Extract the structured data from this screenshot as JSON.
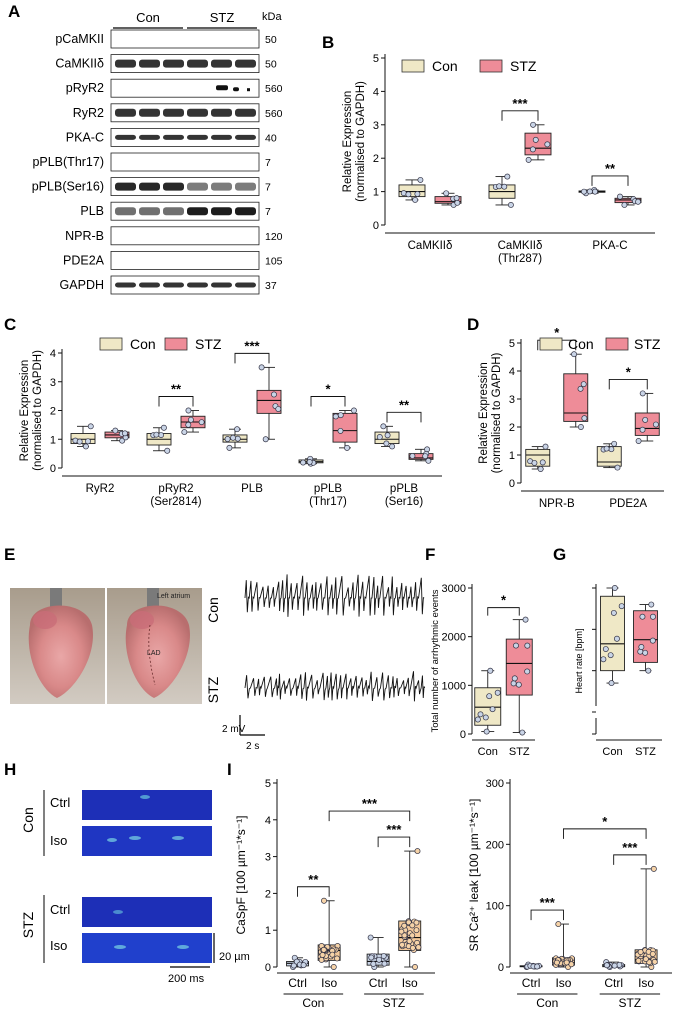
{
  "panel_letters": [
    "A",
    "B",
    "C",
    "D",
    "E",
    "F",
    "G",
    "H",
    "I"
  ],
  "panelA": {
    "groups": [
      "Con",
      "STZ"
    ],
    "kda_header": "kDa",
    "rows": [
      {
        "label": "pCaMKII",
        "kda": "50",
        "style": "blank"
      },
      {
        "label": "CaMKIIδ",
        "kda": "50",
        "style": "dark"
      },
      {
        "label": "pRyR2",
        "kda": "560",
        "style": "sparse"
      },
      {
        "label": "RyR2",
        "kda": "560",
        "style": "dark"
      },
      {
        "label": "PKA-C",
        "kda": "40",
        "style": "thin"
      },
      {
        "label": "pPLB(Thr17)",
        "kda": "7",
        "style": "blank"
      },
      {
        "label": "pPLB(Ser16)",
        "kda": "7",
        "style": "dark"
      },
      {
        "label": "PLB",
        "kda": "7",
        "style": "dark"
      },
      {
        "label": "NPR-B",
        "kda": "120",
        "style": "blank"
      },
      {
        "label": "PDE2A",
        "kda": "105",
        "style": "blank"
      },
      {
        "label": "GAPDH",
        "kda": "37",
        "style": "thin"
      }
    ]
  },
  "legend": {
    "con": "Con",
    "stz": "STZ"
  },
  "colors": {
    "con": "#efe8c6",
    "stz": "#ee8c98",
    "con_point": "#c9d4e6",
    "iso_fill": "#f4c99a",
    "iso_point": "#f6d3a8"
  },
  "chart_data": [
    {
      "id": "B",
      "type": "box",
      "ylabel": "Relative Expression\n(normalised to GAPDH)",
      "ylim": [
        0,
        5
      ],
      "yticks": [
        0,
        1,
        2,
        3,
        4,
        5
      ],
      "categories": [
        "CaMKIIδ",
        "CaMKIIδ\n(Thr287)",
        "PKA-C"
      ],
      "series": [
        {
          "name": "Con",
          "boxes": [
            [
              0.75,
              0.85,
              1.0,
              1.2,
              1.35
            ],
            [
              0.6,
              0.8,
              1.0,
              1.2,
              1.45
            ],
            [
              0.95,
              0.98,
              1.0,
              1.02,
              1.05
            ]
          ]
        },
        {
          "name": "STZ",
          "boxes": [
            [
              0.6,
              0.65,
              0.7,
              0.85,
              0.95
            ],
            [
              1.95,
              2.1,
              2.3,
              2.75,
              3.0
            ],
            [
              0.6,
              0.67,
              0.75,
              0.8,
              0.85
            ]
          ]
        }
      ],
      "significance": [
        {
          "cat": 1,
          "label": "***"
        },
        {
          "cat": 2,
          "label": "**"
        }
      ]
    },
    {
      "id": "C",
      "type": "box",
      "ylabel": "Relative Expression\n(normalised to GAPDH)",
      "ylim": [
        0,
        4
      ],
      "yticks": [
        0,
        1,
        2,
        3,
        4
      ],
      "categories": [
        "RyR2",
        "pRyR2\n(Ser2814)",
        "PLB",
        "pPLB\n(Thr17)",
        "pPLB\n(Ser16)"
      ],
      "series": [
        {
          "name": "Con",
          "boxes": [
            [
              0.75,
              0.85,
              1.0,
              1.2,
              1.45
            ],
            [
              0.6,
              0.8,
              1.0,
              1.2,
              1.4
            ],
            [
              0.7,
              0.9,
              1.0,
              1.15,
              1.35
            ],
            [
              0.15,
              0.18,
              0.22,
              0.28,
              0.32
            ],
            [
              0.75,
              0.85,
              1.0,
              1.25,
              1.45
            ]
          ]
        },
        {
          "name": "STZ",
          "boxes": [
            [
              0.95,
              1.05,
              1.15,
              1.25,
              1.3
            ],
            [
              1.25,
              1.4,
              1.6,
              1.8,
              2.0
            ],
            [
              1.0,
              1.9,
              2.35,
              2.7,
              3.5
            ],
            [
              0.7,
              0.9,
              1.3,
              1.9,
              2.0
            ],
            [
              0.25,
              0.3,
              0.35,
              0.5,
              0.65
            ]
          ]
        }
      ],
      "significance": [
        {
          "cat": 1,
          "label": "**"
        },
        {
          "cat": 2,
          "label": "***"
        },
        {
          "cat": 3,
          "label": "*"
        },
        {
          "cat": 4,
          "label": "**"
        }
      ]
    },
    {
      "id": "D",
      "type": "box",
      "ylabel": "Relative Expression\n(normalised to GAPDH)",
      "ylim": [
        0,
        5
      ],
      "yticks": [
        0,
        1,
        2,
        3,
        4,
        5
      ],
      "categories": [
        "NPR-B",
        "PDE2A"
      ],
      "series": [
        {
          "name": "Con",
          "boxes": [
            [
              0.5,
              0.6,
              1.0,
              1.2,
              1.3
            ],
            [
              0.55,
              0.6,
              0.75,
              1.3,
              1.4
            ]
          ]
        },
        {
          "name": "STZ",
          "boxes": [
            [
              2.0,
              2.2,
              2.5,
              3.9,
              4.6
            ],
            [
              1.5,
              1.7,
              1.95,
              2.5,
              3.2
            ]
          ]
        }
      ],
      "significance": [
        {
          "cat": 0,
          "label": "*"
        },
        {
          "cat": 1,
          "label": "*"
        }
      ]
    },
    {
      "id": "F",
      "type": "box",
      "ylabel": "Total number of arrhythmic events",
      "ylim": [
        0,
        3000
      ],
      "yticks": [
        0,
        1000,
        2000,
        3000
      ],
      "categories": [
        "Con",
        "STZ"
      ],
      "boxes": [
        [
          50,
          180,
          550,
          950,
          1300
        ],
        [
          30,
          800,
          1450,
          1950,
          2350
        ]
      ],
      "fills": [
        "con",
        "stz"
      ],
      "significance": [
        {
          "from": 0,
          "to": 1,
          "label": "*"
        }
      ]
    },
    {
      "id": "G",
      "type": "box",
      "ylabel": "Heart rate [bpm]",
      "ylim": [
        0,
        500
      ],
      "yticks": [
        0,
        200,
        300,
        400,
        500
      ],
      "categories": [
        "Con",
        "STZ"
      ],
      "boxes": [
        [
          270,
          300,
          365,
          480,
          500
        ],
        [
          300,
          320,
          375,
          445,
          460
        ]
      ],
      "fills": [
        "con",
        "stz"
      ]
    },
    {
      "id": "I1",
      "type": "box",
      "ylabel": "CaSpF [100 µm⁻¹*s⁻¹]",
      "ylim": [
        0,
        5
      ],
      "yticks": [
        0,
        1,
        2,
        3,
        4,
        5
      ],
      "categories": [
        "Ctrl",
        "Iso",
        "Ctrl",
        "Iso"
      ],
      "groups": [
        "Con",
        "STZ"
      ],
      "boxes": [
        [
          0,
          0.03,
          0.1,
          0.15,
          0.25
        ],
        [
          0,
          0.18,
          0.45,
          0.6,
          1.8
        ],
        [
          0,
          0.05,
          0.15,
          0.35,
          0.8
        ],
        [
          0,
          0.45,
          0.8,
          1.25,
          3.15
        ]
      ],
      "fills": [
        "ctrl",
        "iso",
        "ctrl",
        "iso"
      ],
      "significance": [
        {
          "from": 0,
          "to": 1,
          "label": "**"
        },
        {
          "from": 2,
          "to": 3,
          "label": "***"
        },
        {
          "from": 1,
          "to": 3,
          "label": "***"
        }
      ]
    },
    {
      "id": "I2",
      "type": "box",
      "ylabel": "SR Ca²⁺ leak [100 µm⁻¹*s⁻¹]",
      "ylim": [
        0,
        300
      ],
      "yticks": [
        0,
        100,
        200,
        300
      ],
      "categories": [
        "Ctrl",
        "Iso",
        "Ctrl",
        "Iso"
      ],
      "groups": [
        "Con",
        "STZ"
      ],
      "boxes": [
        [
          0,
          0.5,
          1,
          2,
          4
        ],
        [
          0,
          3,
          7,
          15,
          70
        ],
        [
          0,
          0.5,
          2,
          4,
          8
        ],
        [
          0,
          6,
          12,
          28,
          160
        ]
      ],
      "fills": [
        "ctrl",
        "iso",
        "ctrl",
        "iso"
      ],
      "significance": [
        {
          "from": 0,
          "to": 1,
          "label": "***"
        },
        {
          "from": 2,
          "to": 3,
          "label": "***"
        },
        {
          "from": 1,
          "to": 3,
          "label": "*"
        }
      ]
    }
  ],
  "panelE": {
    "trace_labels": [
      "Con",
      "STZ"
    ],
    "image_labels": [
      "Left atrium",
      "LAD"
    ],
    "scale_v": "2 mV",
    "scale_t": "2 s"
  },
  "panelH": {
    "groups": [
      "Con",
      "STZ"
    ],
    "conditions": [
      "Ctrl",
      "Iso",
      "Ctrl",
      "Iso"
    ],
    "scale_x": "200 ms",
    "scale_y": "20 µm"
  }
}
